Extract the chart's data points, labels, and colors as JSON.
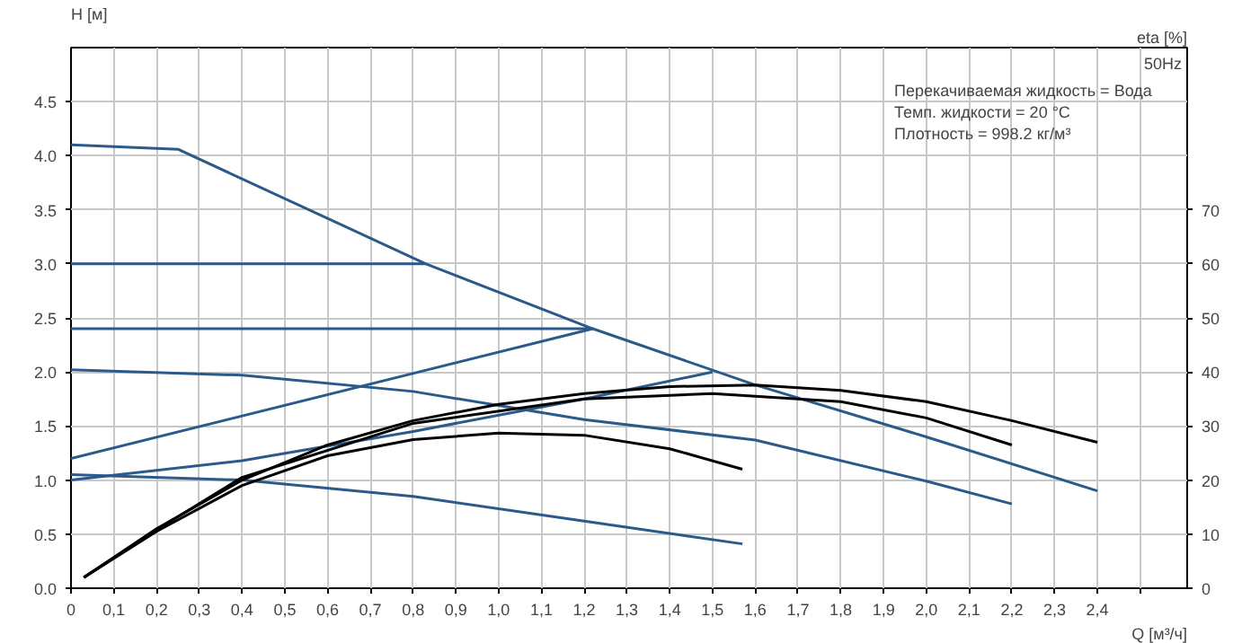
{
  "chart_data": {
    "type": "line",
    "xlabel": "Q [м³/ч]",
    "ylabel": "H [м]",
    "y2label": "eta [%]",
    "annotations": [
      "50Hz",
      "Перекачиваемая жидкость = Вода",
      "Темп. жидкости = 20 °C",
      "Плотность = 998.2 кг/м³"
    ],
    "xlim": [
      0,
      2.61
    ],
    "ylim": [
      0,
      5
    ],
    "y2lim": [
      0,
      100
    ],
    "xticks": [
      {
        "value": 0,
        "label": "0"
      },
      {
        "value": 0.1,
        "label": "0,1"
      },
      {
        "value": 0.2,
        "label": "0,2"
      },
      {
        "value": 0.3,
        "label": "0,3"
      },
      {
        "value": 0.4,
        "label": "0,4"
      },
      {
        "value": 0.5,
        "label": "0,5"
      },
      {
        "value": 0.6,
        "label": "0,6"
      },
      {
        "value": 0.7,
        "label": "0,7"
      },
      {
        "value": 0.8,
        "label": "0,8"
      },
      {
        "value": 0.9,
        "label": "0,9"
      },
      {
        "value": 1.0,
        "label": "1,0"
      },
      {
        "value": 1.1,
        "label": "1,1"
      },
      {
        "value": 1.2,
        "label": "1,2"
      },
      {
        "value": 1.3,
        "label": "1,3"
      },
      {
        "value": 1.4,
        "label": "1,4"
      },
      {
        "value": 1.5,
        "label": "1,5"
      },
      {
        "value": 1.6,
        "label": "1,6"
      },
      {
        "value": 1.7,
        "label": "1,7"
      },
      {
        "value": 1.8,
        "label": "1,8"
      },
      {
        "value": 1.9,
        "label": "1,9"
      },
      {
        "value": 2.0,
        "label": "2,0"
      },
      {
        "value": 2.1,
        "label": "2,1"
      },
      {
        "value": 2.2,
        "label": "2,2"
      },
      {
        "value": 2.3,
        "label": "2,3"
      },
      {
        "value": 2.4,
        "label": "2,4"
      },
      {
        "value": 2.5,
        "label": null
      }
    ],
    "yticks": [
      {
        "value": 0,
        "label": "0.0"
      },
      0.5,
      {
        "value": 1,
        "label": "1.0"
      },
      1.5,
      {
        "value": 2,
        "label": "2.0"
      },
      2.5,
      {
        "value": 3,
        "label": "3.0"
      },
      3.5,
      {
        "value": 4,
        "label": "4.0"
      },
      4.5
    ],
    "y2ticks": [
      0,
      10,
      20,
      30,
      40,
      50,
      60,
      70
    ],
    "grid": true,
    "marker": "none",
    "line_style": "solid",
    "series": [
      {
        "color": "#2b5a8a",
        "x": [
          0,
          0.25,
          0.83,
          1.22,
          1.6,
          2.0,
          2.4
        ],
        "values": [
          4.1,
          4.06,
          3.0,
          2.4,
          1.88,
          1.4,
          0.9
        ]
      },
      {
        "color": "#2b5a8a",
        "x": [
          0,
          0.83
        ],
        "values": [
          3.0,
          3.0
        ]
      },
      {
        "color": "#2b5a8a",
        "x": [
          0,
          1.22
        ],
        "values": [
          2.4,
          2.4
        ]
      },
      {
        "color": "#2b5a8a",
        "x": [
          0,
          1.22
        ],
        "values": [
          1.2,
          2.4
        ]
      },
      {
        "color": "#2b5a8a",
        "x": [
          0,
          0.4,
          0.8,
          1.2,
          1.5
        ],
        "values": [
          1.0,
          1.18,
          1.45,
          1.75,
          2.0
        ]
      },
      {
        "color": "#2b5a8a",
        "x": [
          0,
          0.4,
          0.8,
          1.2,
          1.6,
          2.0,
          2.2
        ],
        "values": [
          2.02,
          1.97,
          1.82,
          1.56,
          1.37,
          0.99,
          0.78
        ]
      },
      {
        "color": "#2b5a8a",
        "x": [
          0,
          0.4,
          0.8,
          1.2,
          1.57
        ],
        "values": [
          1.05,
          1.0,
          0.85,
          0.62,
          0.41
        ]
      },
      {
        "color": "#000000",
        "axis": "y2",
        "x": [
          0.03,
          0.2,
          0.4,
          0.6,
          0.8,
          1.0,
          1.2,
          1.4,
          1.6,
          1.8,
          2.0,
          2.2,
          2.4
        ],
        "values": [
          2,
          11,
          20,
          26.5,
          31,
          34,
          36,
          37.3,
          37.6,
          36.6,
          34.5,
          31,
          27
        ]
      },
      {
        "color": "#000000",
        "axis": "y2",
        "x": [
          0.03,
          0.2,
          0.4,
          0.8,
          1.2,
          1.5,
          1.8,
          2.0,
          2.2
        ],
        "values": [
          2,
          10.8,
          20.5,
          30.5,
          35,
          36,
          34.5,
          31.5,
          26.5
        ]
      },
      {
        "color": "#000000",
        "axis": "y2",
        "x": [
          0.03,
          0.2,
          0.4,
          0.6,
          0.8,
          1.0,
          1.2,
          1.4,
          1.57
        ],
        "values": [
          2,
          10.5,
          19,
          24.5,
          27.5,
          28.7,
          28.3,
          25.8,
          22
        ]
      }
    ]
  }
}
